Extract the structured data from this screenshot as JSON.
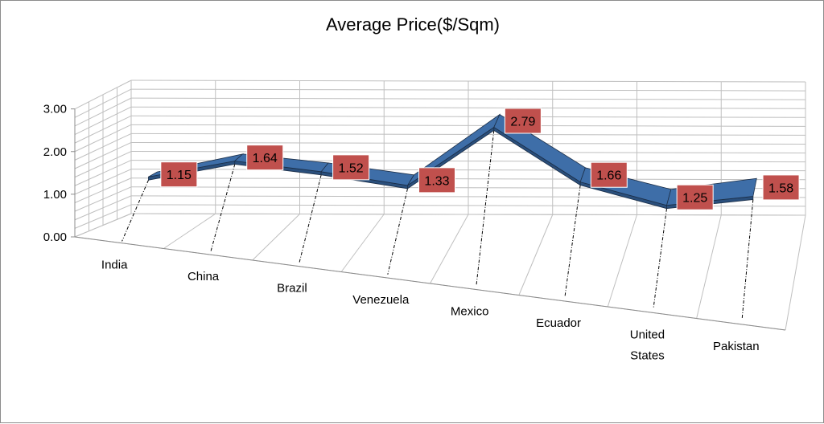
{
  "chart_data": {
    "type": "line",
    "title": "Average Price($/Sqm)",
    "categories": [
      "India",
      "China",
      "Brazil",
      "Venezuela",
      "Mexico",
      "Ecuador",
      "United States",
      "Pakistan"
    ],
    "series": [
      {
        "values": [
          1.15,
          1.64,
          1.52,
          1.33,
          2.79,
          1.66,
          1.25,
          1.58
        ]
      }
    ],
    "data_labels": [
      "1.15",
      "1.64",
      "1.52",
      "1.33",
      "2.79",
      "1.66",
      "1.25",
      "1.58"
    ],
    "y_ticks": [
      "0.00",
      "1.00",
      "2.00",
      "3.00"
    ],
    "ylim": [
      0,
      3
    ],
    "grid": true,
    "legend": "none",
    "style": "3d-ribbon"
  },
  "colors": {
    "ribbon": "#3e6ea8",
    "ribbon_dark": "#2a4f7c",
    "label_box": "#c0504d",
    "grid": "#bfbfbf"
  }
}
